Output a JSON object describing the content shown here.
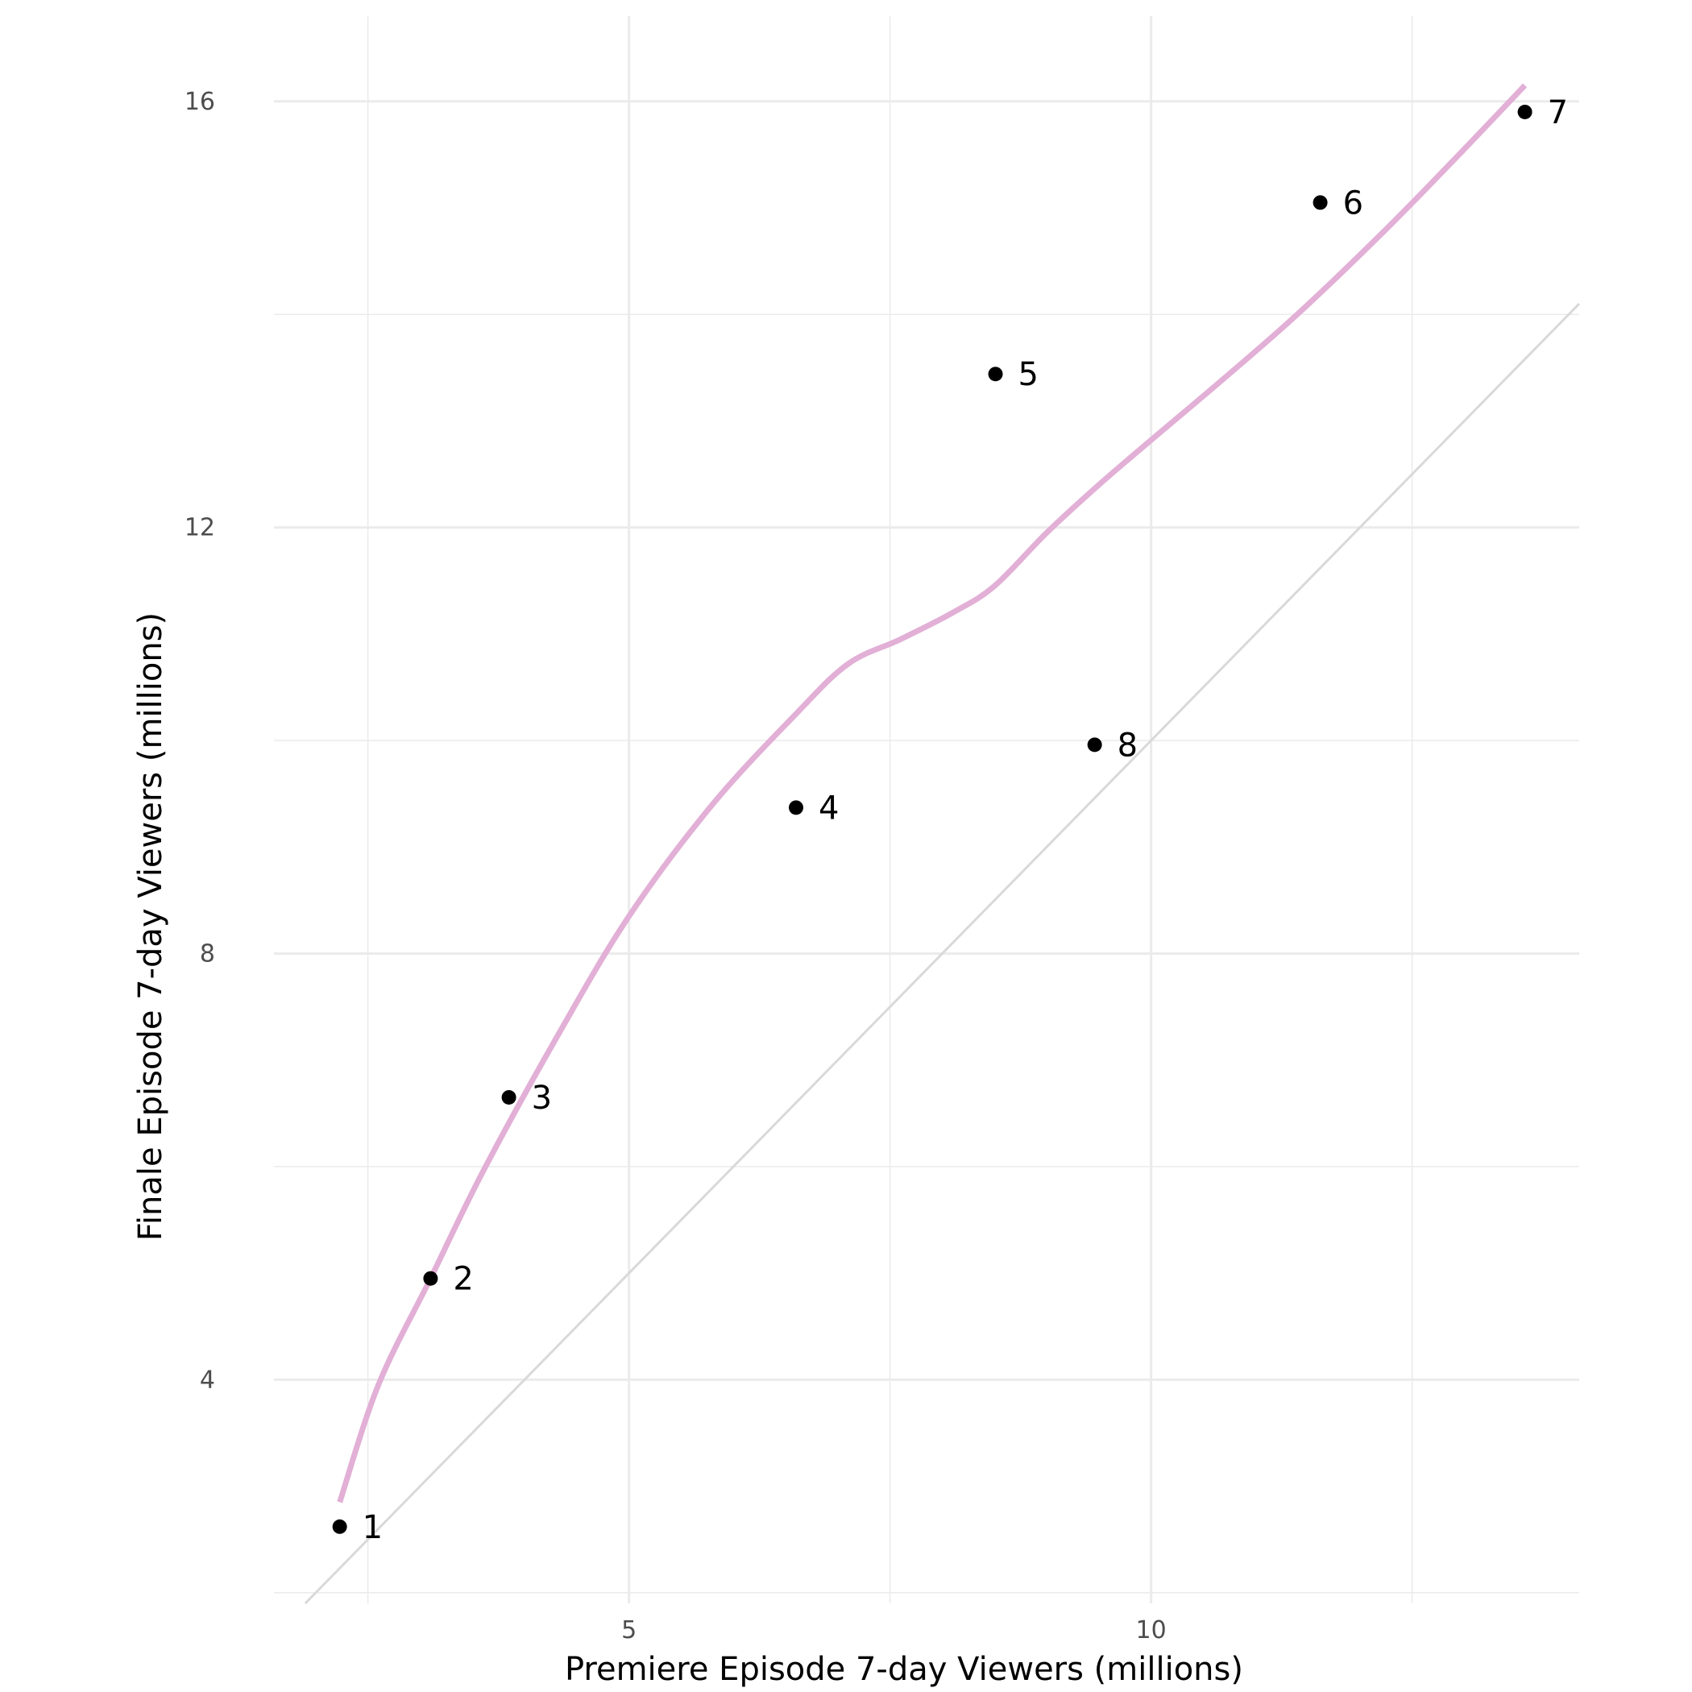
{
  "chart_data": {
    "type": "scatter",
    "xlabel": "Premiere Episode 7-day Viewers (millions)",
    "ylabel": "Finale Episode 7-day Viewers (millions)",
    "xlim": [
      1.6,
      14.1
    ],
    "ylim": [
      1.9,
      16.8
    ],
    "x_ticks": [
      5,
      10
    ],
    "y_ticks": [
      4,
      8,
      12,
      16
    ],
    "grid": true,
    "points": [
      {
        "label": "1",
        "x": 2.23,
        "y": 2.62
      },
      {
        "label": "2",
        "x": 3.1,
        "y": 4.95
      },
      {
        "label": "3",
        "x": 3.85,
        "y": 6.65
      },
      {
        "label": "4",
        "x": 6.6,
        "y": 9.37
      },
      {
        "label": "5",
        "x": 8.51,
        "y": 13.44
      },
      {
        "label": "6",
        "x": 11.62,
        "y": 15.05
      },
      {
        "label": "7",
        "x": 13.58,
        "y": 15.9
      },
      {
        "label": "8",
        "x": 9.46,
        "y": 9.96
      }
    ],
    "smooth_line": {
      "color": "#e2afd6",
      "x": [
        2.23,
        2.6,
        3.1,
        3.6,
        4.3,
        5.0,
        5.8,
        6.6,
        7.1,
        7.6,
        8.1,
        8.5,
        9.0,
        9.5,
        10.0,
        10.7,
        11.4,
        12.2,
        12.9,
        13.58
      ],
      "y": [
        2.85,
        3.95,
        4.95,
        5.95,
        7.2,
        8.35,
        9.4,
        10.25,
        10.72,
        10.95,
        11.2,
        11.45,
        11.95,
        12.4,
        12.82,
        13.4,
        14.0,
        14.75,
        15.45,
        16.15
      ]
    },
    "reference_line": {
      "type": "identity",
      "color": "#d9d9d9"
    }
  }
}
